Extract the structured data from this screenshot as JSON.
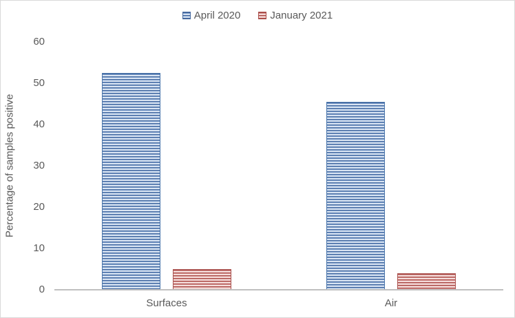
{
  "chart_data": {
    "type": "bar",
    "title": "",
    "xlabel": "",
    "ylabel": "Percentage of samples positive",
    "categories": [
      "Surfaces",
      "Air"
    ],
    "series": [
      {
        "name": "April 2020",
        "values": [
          52.5,
          45.5
        ]
      },
      {
        "name": "January 2021",
        "values": [
          5,
          4
        ]
      }
    ],
    "ylim": [
      0,
      60
    ],
    "yticks": [
      0,
      10,
      20,
      30,
      40,
      50,
      60
    ],
    "grid": false,
    "legend_position": "top-center",
    "fill_pattern": "light-horizontal-stripes"
  },
  "colors": {
    "april_2020_dark": "#46699f",
    "april_2020_light": "#dce6f2",
    "january_2021_dark": "#aa4f4b",
    "january_2021_light": "#f2dcdb",
    "axis_line": "#bfbfbf",
    "text": "#595959",
    "frame_border": "#d9d9d9",
    "background": "#ffffff"
  }
}
